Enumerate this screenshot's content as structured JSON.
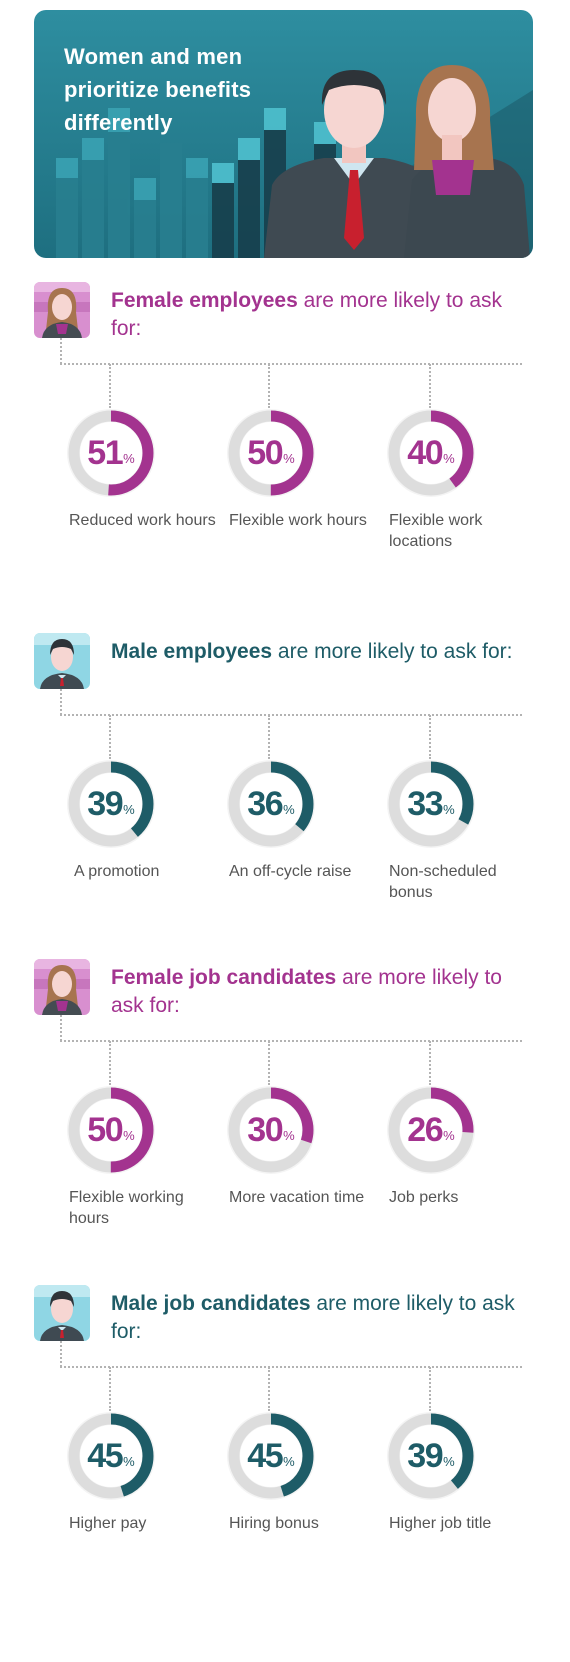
{
  "banner": {
    "title": "Women and men prioritize benefits differently"
  },
  "colors": {
    "female": "#a3338f",
    "male": "#1e5c67",
    "ring_bg": "#dddddd"
  },
  "chart_data": [
    {
      "type": "pie",
      "group": "female",
      "heading_bold": "Female employees",
      "heading_rest": " are more likely to ask for:",
      "categories": [
        "Reduced work hours",
        "Flexible work hours",
        "Flexible work locations"
      ],
      "values": [
        51,
        50,
        40
      ],
      "unit": "%"
    },
    {
      "type": "pie",
      "group": "male",
      "heading_bold": "Male employees",
      "heading_rest": " are more likely to ask for:",
      "categories": [
        "A promotion",
        "An off-cycle raise",
        "Non-scheduled bonus"
      ],
      "values": [
        39,
        36,
        33
      ],
      "unit": "%"
    },
    {
      "type": "pie",
      "group": "female",
      "heading_bold": "Female job candidates",
      "heading_rest": " are more likely to ask for:",
      "categories": [
        "Flexible working hours",
        "More vacation time",
        "Job perks"
      ],
      "values": [
        50,
        30,
        26
      ],
      "unit": "%"
    },
    {
      "type": "pie",
      "group": "male",
      "heading_bold": "Male job candidates",
      "heading_rest": " are more likely to ask for:",
      "categories": [
        "Higher pay",
        "Hiring bonus",
        "Higher job title"
      ],
      "values": [
        45,
        45,
        39
      ],
      "unit": "%"
    }
  ]
}
